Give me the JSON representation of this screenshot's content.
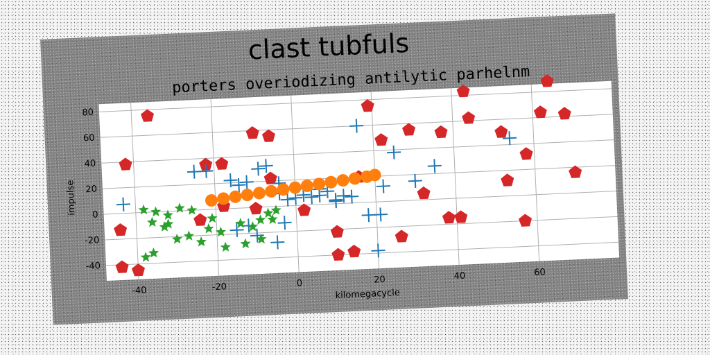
{
  "chart_data": {
    "type": "scatter",
    "title": "clast tubfuls",
    "subtitle": "porters overiodizing antilytic parhelnm",
    "xlabel": "kilomegacycle",
    "ylabel": "impulse",
    "xlim": [
      -48,
      80
    ],
    "ylim": [
      -52,
      86
    ],
    "xticks": [
      -40,
      -20,
      0,
      20,
      40,
      60
    ],
    "yticks": [
      -40,
      -20,
      0,
      20,
      40,
      60,
      80
    ],
    "grid": true,
    "colors": {
      "red": "#d62728",
      "blue": "#1f77b4",
      "green": "#2ca02c",
      "orange": "#ff7f0e",
      "plot_bg": "#ffffff",
      "frame": "#838383"
    },
    "series": [
      {
        "marker": "pentagon",
        "color": "#d62728",
        "points": [
          [
            -36,
            75
          ],
          [
            -42,
            38
          ],
          [
            -44,
            -13
          ],
          [
            -44,
            -42
          ],
          [
            -40,
            -45
          ],
          [
            -24,
            -8
          ],
          [
            -22,
            35
          ],
          [
            -18,
            35
          ],
          [
            -18,
            2
          ],
          [
            -10,
            58
          ],
          [
            -6,
            55
          ],
          [
            -6,
            22
          ],
          [
            -10,
            -1
          ],
          [
            2,
            -4
          ],
          [
            10,
            -22
          ],
          [
            10,
            -40
          ],
          [
            14,
            -38
          ],
          [
            16,
            20
          ],
          [
            19,
            75
          ],
          [
            22,
            48
          ],
          [
            26,
            -28
          ],
          [
            29,
            55
          ],
          [
            32,
            5
          ],
          [
            37,
            52
          ],
          [
            38,
            -15
          ],
          [
            41,
            -15
          ],
          [
            43,
            83
          ],
          [
            44,
            62
          ],
          [
            52,
            50
          ],
          [
            53,
            12
          ],
          [
            57,
            -20
          ],
          [
            58,
            32
          ],
          [
            62,
            64
          ],
          [
            64,
            88
          ],
          [
            68,
            62
          ],
          [
            70,
            16
          ]
        ]
      },
      {
        "marker": "plus",
        "color": "#1f77b4",
        "points": [
          [
            -43,
            7
          ],
          [
            -25,
            30
          ],
          [
            -22,
            30
          ],
          [
            -16,
            22
          ],
          [
            -14,
            18
          ],
          [
            -12,
            20
          ],
          [
            -9,
            30
          ],
          [
            -7,
            32
          ],
          [
            -4,
            10
          ],
          [
            -2,
            5
          ],
          [
            0,
            6
          ],
          [
            2,
            8
          ],
          [
            4,
            6
          ],
          [
            6,
            7
          ],
          [
            8,
            10
          ],
          [
            10,
            2
          ],
          [
            12,
            6
          ],
          [
            14,
            5
          ],
          [
            16,
            60
          ],
          [
            18,
            -10
          ],
          [
            21,
            -10
          ],
          [
            20,
            -38
          ],
          [
            22,
            12
          ],
          [
            25,
            38
          ],
          [
            30,
            15
          ],
          [
            35,
            26
          ],
          [
            54,
            45
          ],
          [
            -15,
            -17
          ],
          [
            -12,
            -14
          ],
          [
            -10,
            -22
          ],
          [
            -5,
            -28
          ],
          [
            -3,
            -13
          ],
          [
            -4,
            18
          ],
          [
            2,
            13
          ],
          [
            6,
            12
          ],
          [
            10,
            3
          ]
        ]
      },
      {
        "marker": "star",
        "color": "#2ca02c",
        "points": [
          [
            -38,
            2
          ],
          [
            -35,
            0
          ],
          [
            -32,
            -3
          ],
          [
            -29,
            2
          ],
          [
            -26,
            0
          ],
          [
            -36,
            -8
          ],
          [
            -33,
            -12
          ],
          [
            -30,
            -22
          ],
          [
            -27,
            -20
          ],
          [
            -24,
            -25
          ],
          [
            -22,
            -15
          ],
          [
            -19,
            -18
          ],
          [
            -18,
            -30
          ],
          [
            -36,
            -32
          ],
          [
            -38,
            -35
          ],
          [
            -14,
            -12
          ],
          [
            -11,
            -15
          ],
          [
            -9,
            -10
          ],
          [
            -7,
            -5
          ],
          [
            -5,
            -3
          ],
          [
            -13,
            -28
          ],
          [
            -9,
            -25
          ],
          [
            -21,
            -7
          ],
          [
            -32,
            -10
          ],
          [
            -6,
            -10
          ]
        ]
      },
      {
        "marker": "circle",
        "color": "#ff7f0e",
        "points": [
          [
            -21,
            7
          ],
          [
            -18,
            8
          ],
          [
            -15,
            9
          ],
          [
            -12,
            10
          ],
          [
            -9,
            11
          ],
          [
            -6,
            12
          ],
          [
            -3,
            13
          ],
          [
            0,
            14
          ],
          [
            3,
            15
          ],
          [
            6,
            16
          ],
          [
            9,
            17
          ],
          [
            12,
            18
          ],
          [
            15,
            19
          ],
          [
            18,
            20
          ],
          [
            20,
            21
          ]
        ]
      }
    ]
  }
}
